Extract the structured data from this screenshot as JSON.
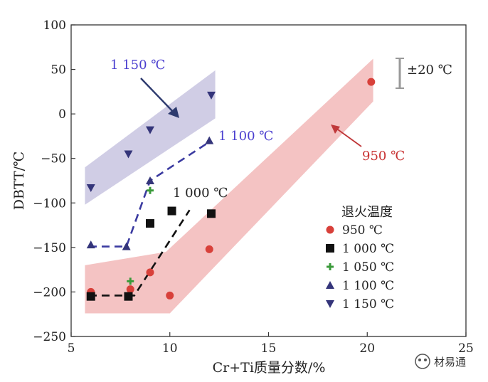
{
  "chart_data": {
    "type": "scatter",
    "title": "",
    "xlabel": "Cr+Ti质量分数/%",
    "ylabel": "DBTT/℃",
    "xlim": [
      5,
      25
    ],
    "ylim": [
      -250,
      100
    ],
    "xticks": [
      "5",
      "10",
      "15",
      "20",
      "25"
    ],
    "yticks": [
      "100",
      "50",
      "0",
      "−50",
      "−100",
      "−150",
      "−200",
      "−250"
    ],
    "legend_title": "退火温度",
    "legend_position": "right",
    "series": [
      {
        "name": "950 ℃",
        "color": "#d8403a",
        "marker": "circle",
        "points": [
          [
            6,
            -200
          ],
          [
            8,
            -197
          ],
          [
            9,
            -178
          ],
          [
            10,
            -204
          ],
          [
            12,
            -152
          ],
          [
            20.2,
            36
          ]
        ]
      },
      {
        "name": "1 000 ℃",
        "color": "#111111",
        "marker": "square",
        "points": [
          [
            6,
            -205
          ],
          [
            7.9,
            -205
          ],
          [
            9,
            -123
          ],
          [
            10.1,
            -109
          ],
          [
            12.1,
            -112
          ]
        ]
      },
      {
        "name": "1 050 ℃",
        "color": "#3a9a3a",
        "marker": "plus",
        "points": [
          [
            8,
            -188
          ],
          [
            9,
            -86
          ]
        ]
      },
      {
        "name": "1 100 ℃",
        "color": "#34357a",
        "marker": "triangle-up",
        "points": [
          [
            6,
            -147
          ],
          [
            7.8,
            -149
          ],
          [
            9,
            -75
          ],
          [
            12,
            -30
          ]
        ]
      },
      {
        "name": "1 150 ℃",
        "color": "#34357a",
        "marker": "triangle-down",
        "points": [
          [
            6,
            -83
          ],
          [
            7.9,
            -45
          ],
          [
            9,
            -18
          ],
          [
            12.1,
            21
          ]
        ]
      }
    ],
    "trend_lines": [
      {
        "name": "1 000 ℃",
        "color": "#111111",
        "points": [
          [
            5.9,
            -204
          ],
          [
            8.2,
            -204
          ],
          [
            11,
            -108
          ]
        ]
      },
      {
        "name": "1 100 ℃",
        "color": "#3a3aa0",
        "points": [
          [
            5.9,
            -149
          ],
          [
            7.8,
            -149
          ],
          [
            9,
            -75
          ],
          [
            12.1,
            -30
          ]
        ]
      }
    ],
    "bands": [
      {
        "name": "1 150 ℃",
        "color": "#c8c4e0",
        "polygon": [
          [
            5.7,
            -60
          ],
          [
            5.7,
            -102
          ],
          [
            12.3,
            -5
          ],
          [
            12.3,
            49
          ]
        ]
      },
      {
        "name": "950 ℃",
        "color": "#f2b8b8",
        "polygon": [
          [
            5.7,
            -170
          ],
          [
            9.8,
            -155
          ],
          [
            20.3,
            62
          ],
          [
            20.3,
            14
          ],
          [
            10,
            -224
          ],
          [
            5.7,
            -224
          ]
        ]
      }
    ],
    "annotations": [
      {
        "text": "1 150 ℃",
        "color": "#4b3fcf"
      },
      {
        "text": "1 100 ℃",
        "color": "#4b3fcf"
      },
      {
        "text": "1 000 ℃",
        "color": "#222222"
      },
      {
        "text": "950 ℃",
        "color": "#c83232"
      },
      {
        "text": "±20 ℃",
        "color": "#222222"
      }
    ],
    "error_bar_value": 20
  },
  "watermark": {
    "text": "材易通"
  }
}
